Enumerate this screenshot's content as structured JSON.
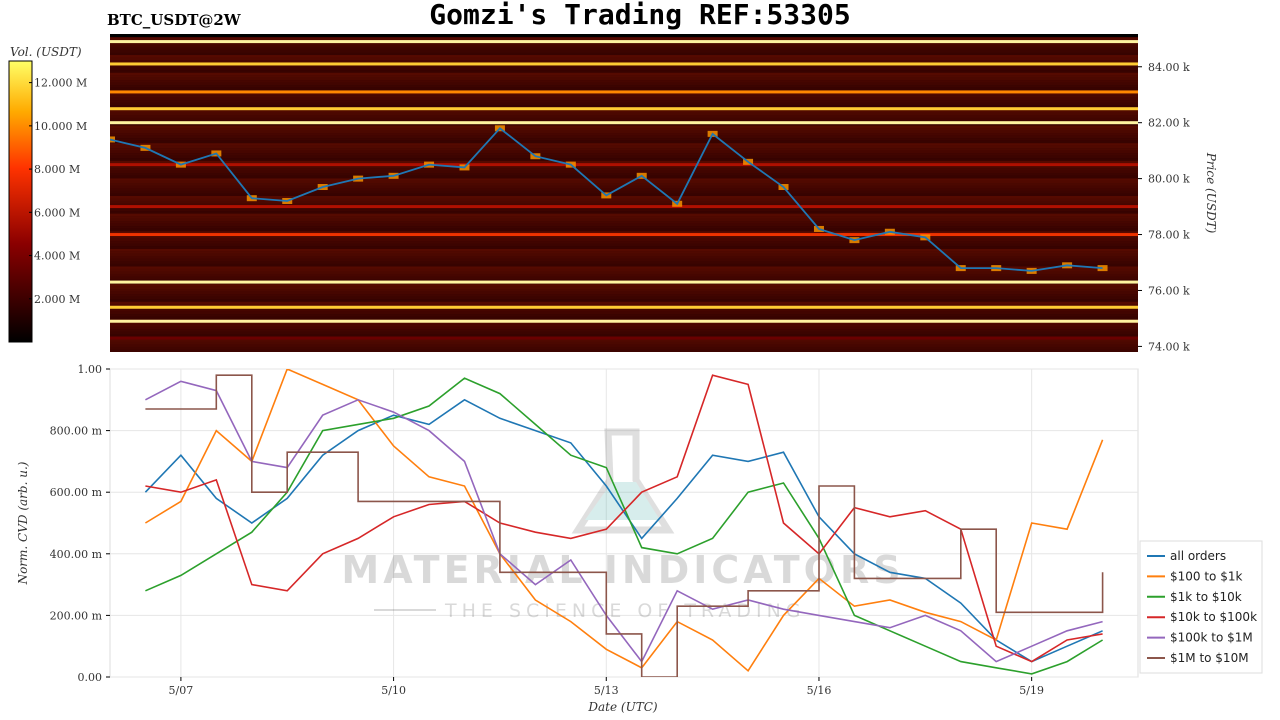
{
  "header": {
    "title": "Gomzi's Trading REF:53305",
    "symbol": "BTC_USDT@2W"
  },
  "watermark": {
    "brand": "MATERIAL INDICATORS",
    "tagline": "THE SCIENCE OF TRADING"
  },
  "colorbar": {
    "label": "Vol. (USDT)",
    "ticks": [
      "2.000 M",
      "4.000 M",
      "6.000 M",
      "8.000 M",
      "10.000 M",
      "12.000 M"
    ],
    "range": [
      0,
      13000000
    ]
  },
  "chart_data": [
    {
      "type": "heatmap",
      "title": "Gomzi's Trading REF:53305",
      "ylabel": "Price (USDT)",
      "ylim": [
        73800,
        85100
      ],
      "yticks": [
        "74.00 k",
        "76.00 k",
        "78.00 k",
        "80.00 k",
        "82.00 k",
        "84.00 k"
      ],
      "price_series": {
        "color": "#1f77b4",
        "x": [
          "5/06 00:00",
          "5/06 12:00",
          "5/07 00:00",
          "5/07 12:00",
          "5/08 00:00",
          "5/08 12:00",
          "5/09 00:00",
          "5/09 12:00",
          "5/10 00:00",
          "5/10 12:00",
          "5/11 00:00",
          "5/11 12:00",
          "5/12 00:00",
          "5/12 12:00",
          "5/13 00:00",
          "5/13 12:00",
          "5/14 00:00",
          "5/14 12:00",
          "5/15 00:00",
          "5/15 12:00",
          "5/16 00:00",
          "5/16 12:00",
          "5/17 00:00",
          "5/17 12:00",
          "5/18 00:00",
          "5/18 12:00",
          "5/19 00:00",
          "5/19 12:00",
          "5/20 00:00"
        ],
        "y": [
          81400,
          81100,
          80500,
          80900,
          79300,
          79200,
          79700,
          80000,
          80100,
          80500,
          80400,
          81800,
          80800,
          80500,
          79400,
          80100,
          79100,
          81600,
          80600,
          79700,
          78200,
          77800,
          78100,
          77900,
          76800,
          76800,
          76700,
          76900,
          76800
        ]
      },
      "liquidity_bands": [
        {
          "price": 84900,
          "volume": 11500000
        },
        {
          "price": 84100,
          "volume": 9500000
        },
        {
          "price": 83100,
          "volume": 8500000
        },
        {
          "price": 82500,
          "volume": 10000000
        },
        {
          "price": 82000,
          "volume": 12000000
        },
        {
          "price": 80500,
          "volume": 4500000
        },
        {
          "price": 79000,
          "volume": 5000000
        },
        {
          "price": 78000,
          "volume": 7000000
        },
        {
          "price": 76300,
          "volume": 11500000
        },
        {
          "price": 75400,
          "volume": 10000000
        },
        {
          "price": 74900,
          "volume": 12000000
        },
        {
          "price": 74300,
          "volume": 3000000
        }
      ]
    },
    {
      "type": "line",
      "xlabel": "Date (UTC)",
      "ylabel": "Norm. CVD (arb. u.)",
      "ylim": [
        0,
        1
      ],
      "yticks": [
        "0.00",
        "200.00 m",
        "400.00 m",
        "600.00 m",
        "800.00 m",
        "1.00"
      ],
      "xticks": [
        "5/07",
        "5/10",
        "5/13",
        "5/16",
        "5/19"
      ],
      "x": [
        "5/06 12:00",
        "5/07 00:00",
        "5/07 12:00",
        "5/08 00:00",
        "5/08 12:00",
        "5/09 00:00",
        "5/09 12:00",
        "5/10 00:00",
        "5/10 12:00",
        "5/11 00:00",
        "5/11 12:00",
        "5/12 00:00",
        "5/12 12:00",
        "5/13 00:00",
        "5/13 12:00",
        "5/14 00:00",
        "5/14 12:00",
        "5/15 00:00",
        "5/15 12:00",
        "5/16 00:00",
        "5/16 12:00",
        "5/17 00:00",
        "5/17 12:00",
        "5/18 00:00",
        "5/18 12:00",
        "5/19 00:00",
        "5/19 12:00",
        "5/20 00:00"
      ],
      "series": [
        {
          "name": "all orders",
          "color": "#1f77b4",
          "values": [
            0.6,
            0.72,
            0.58,
            0.5,
            0.58,
            0.72,
            0.8,
            0.85,
            0.82,
            0.9,
            0.84,
            0.8,
            0.76,
            0.62,
            0.45,
            0.58,
            0.72,
            0.7,
            0.73,
            0.52,
            0.4,
            0.34,
            0.32,
            0.24,
            0.12,
            0.05,
            0.1,
            0.15
          ]
        },
        {
          "name": "$100 to $1k",
          "color": "#ff7f0e",
          "values": [
            0.5,
            0.57,
            0.8,
            0.7,
            1.0,
            0.95,
            0.9,
            0.75,
            0.65,
            0.62,
            0.4,
            0.25,
            0.18,
            0.09,
            0.03,
            0.18,
            0.12,
            0.02,
            0.2,
            0.32,
            0.23,
            0.25,
            0.21,
            0.18,
            0.12,
            0.5,
            0.48,
            0.77
          ]
        },
        {
          "name": "$1k to $10k",
          "color": "#2ca02c",
          "values": [
            0.28,
            0.33,
            0.4,
            0.47,
            0.6,
            0.8,
            0.82,
            0.84,
            0.88,
            0.97,
            0.92,
            0.82,
            0.72,
            0.68,
            0.42,
            0.4,
            0.45,
            0.6,
            0.63,
            0.45,
            0.2,
            0.15,
            0.1,
            0.05,
            0.03,
            0.01,
            0.05,
            0.12
          ]
        },
        {
          "name": "$10k to $100k",
          "color": "#d62728",
          "values": [
            0.62,
            0.6,
            0.64,
            0.3,
            0.28,
            0.4,
            0.45,
            0.52,
            0.56,
            0.57,
            0.5,
            0.47,
            0.45,
            0.48,
            0.6,
            0.65,
            0.98,
            0.95,
            0.5,
            0.4,
            0.55,
            0.52,
            0.54,
            0.48,
            0.1,
            0.05,
            0.12,
            0.14
          ]
        },
        {
          "name": "$100k to $1M",
          "color": "#9467bd",
          "values": [
            0.9,
            0.96,
            0.93,
            0.7,
            0.68,
            0.85,
            0.9,
            0.86,
            0.8,
            0.7,
            0.4,
            0.3,
            0.38,
            0.2,
            0.05,
            0.28,
            0.22,
            0.25,
            0.22,
            0.2,
            0.18,
            0.16,
            0.2,
            0.15,
            0.05,
            0.1,
            0.15,
            0.18
          ]
        },
        {
          "name": "$1M to $10M",
          "color": "#8c564b",
          "values": [
            0.87,
            0.87,
            0.98,
            0.6,
            0.73,
            0.73,
            0.57,
            0.57,
            0.57,
            0.57,
            0.34,
            0.34,
            0.34,
            0.14,
            0.0,
            0.23,
            0.23,
            0.28,
            0.28,
            0.62,
            0.32,
            0.32,
            0.32,
            0.48,
            0.21,
            0.21,
            0.21,
            0.34
          ]
        }
      ],
      "legend": "right"
    }
  ]
}
